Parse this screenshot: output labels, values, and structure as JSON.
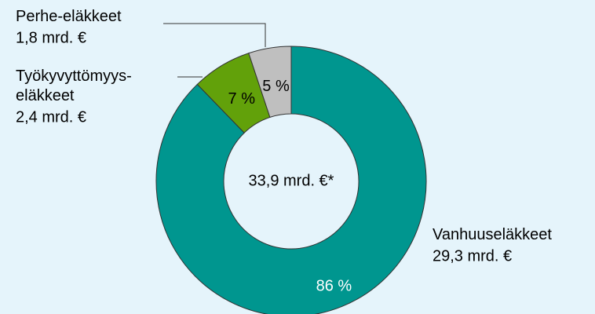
{
  "chart_data": {
    "type": "donut",
    "categories": [
      "Vanhuuseläkkeet",
      "Työkyvyttömyys-\neläkkeet",
      "Perhe-eläkkeet"
    ],
    "values": [
      86,
      7,
      5
    ],
    "value_labels": [
      "86 %",
      "7 %",
      "5 %"
    ],
    "amounts": [
      "29,3 mrd. €",
      "2,4 mrd. €",
      "1,8 mrd. €"
    ],
    "colors": [
      "#00968f",
      "#62a10a",
      "#bfbfbf"
    ],
    "center_label": "33,9 mrd. €*"
  }
}
